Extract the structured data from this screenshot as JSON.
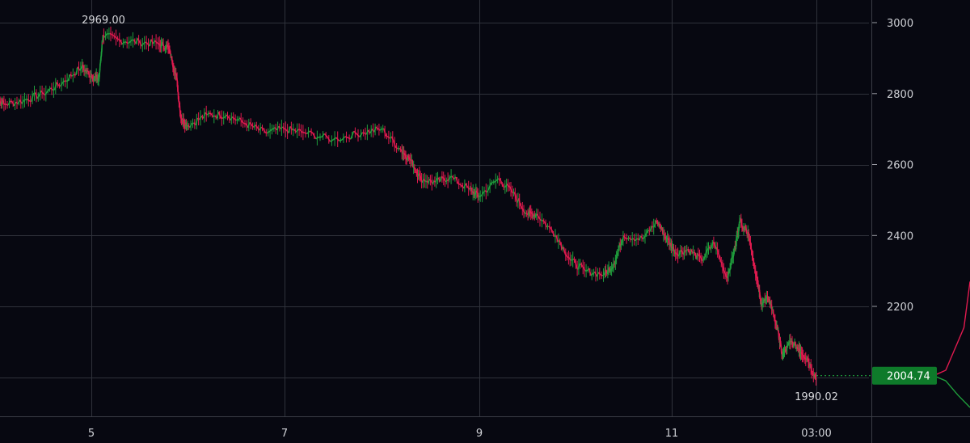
{
  "chart_data": {
    "type": "line",
    "x_tick_labels": [
      "5",
      "7",
      "9",
      "11",
      "03:00"
    ],
    "y_tick_values": [
      3000,
      2800,
      2600,
      2400,
      2200
    ],
    "ylim": [
      1890,
      3040
    ],
    "grid": true,
    "colors": {
      "up": "#1f9e3c",
      "down": "#e01a4f",
      "price_tag": "#0e7a2a"
    },
    "annotations": {
      "high_label": "2969.00",
      "low_label": "1990.02"
    },
    "last_price": {
      "value": 2004.74,
      "label": "2004.74"
    },
    "series": [
      {
        "x": [
          4.0,
          4.1,
          4.3,
          4.5,
          4.7,
          4.9,
          5.0,
          5.08,
          5.12,
          5.3,
          5.5,
          5.7,
          5.8,
          5.88,
          5.93,
          6.0,
          6.2,
          6.4,
          6.6,
          6.8,
          7.0,
          7.2,
          7.5,
          7.8,
          8.0,
          8.2,
          8.3,
          8.4,
          8.55,
          8.7,
          8.9,
          9.0,
          9.2,
          9.35,
          9.5,
          9.6,
          9.8,
          9.95,
          10.1,
          10.3,
          10.4,
          10.5,
          10.7,
          10.85,
          10.95,
          11.05,
          11.2,
          11.35,
          11.5,
          11.65,
          11.75,
          11.8,
          11.9,
          12.0,
          12.05,
          12.15,
          12.25,
          12.3,
          12.4,
          12.5,
          12.6,
          12.7
        ],
        "y": [
          2790,
          2770,
          2780,
          2800,
          2830,
          2875,
          2850,
          2840,
          2965,
          2950,
          2945,
          2940,
          2930,
          2850,
          2730,
          2710,
          2740,
          2740,
          2715,
          2690,
          2700,
          2690,
          2670,
          2690,
          2700,
          2640,
          2610,
          2560,
          2550,
          2565,
          2530,
          2510,
          2560,
          2520,
          2460,
          2460,
          2400,
          2330,
          2300,
          2290,
          2320,
          2400,
          2390,
          2440,
          2390,
          2350,
          2360,
          2330,
          2380,
          2280,
          2370,
          2440,
          2410,
          2280,
          2210,
          2220,
          2130,
          2060,
          2100,
          2080,
          2050,
          1995
        ]
      }
    ],
    "forecast": {
      "x": [
        12.7,
        13.7
      ],
      "y": [
        2004.74,
        2004.74
      ]
    },
    "side_bands": {
      "upper": {
        "x": [
          13.7,
          13.9,
          14.0,
          14.2,
          14.3
        ],
        "y": [
          2004.74,
          2020,
          2060,
          2140,
          2270
        ]
      },
      "lower": {
        "x": [
          13.7,
          13.9,
          14.1,
          14.3
        ],
        "y": [
          2004.74,
          1990,
          1950,
          1915
        ]
      }
    }
  }
}
